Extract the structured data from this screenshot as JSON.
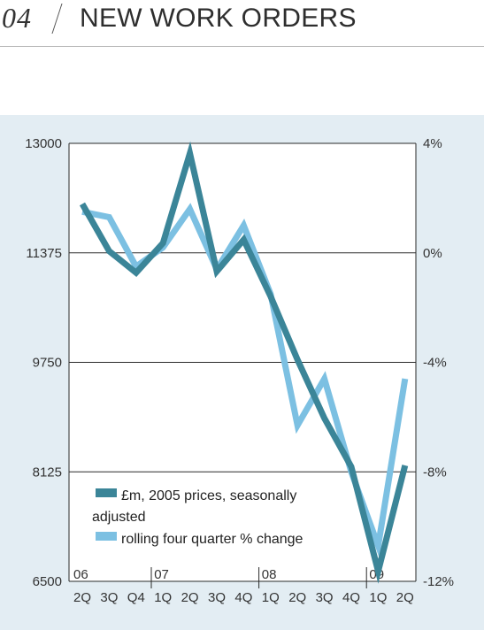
{
  "header": {
    "number": "04",
    "title": "NEW WORK ORDERS"
  },
  "chart_data": {
    "type": "line",
    "colors": {
      "series1": "#3b8598",
      "series2": "#7cc0e2",
      "background": "#e3edf3"
    },
    "left_axis": {
      "ylim": [
        6500,
        13000
      ],
      "ticks": [
        "13000",
        "11375",
        "9750",
        "8125",
        "6500"
      ]
    },
    "right_axis": {
      "ylim": [
        -12,
        4
      ],
      "ticks": [
        "4%",
        "0%",
        "-4%",
        "-8%",
        "-12%"
      ]
    },
    "x_ticks": [
      "2Q",
      "3Q",
      "Q4",
      "1Q",
      "2Q",
      "3Q",
      "4Q",
      "1Q",
      "2Q",
      "3Q",
      "4Q",
      "1Q",
      "2Q"
    ],
    "year_labels": [
      {
        "label": "06",
        "index": 0
      },
      {
        "label": "07",
        "index": 3
      },
      {
        "label": "08",
        "index": 7
      },
      {
        "label": "09",
        "index": 11
      }
    ],
    "series": [
      {
        "name": "£m, 2005 prices, seasonally adjusted",
        "axis": "left",
        "values": [
          12100,
          11400,
          11080,
          11520,
          12850,
          11100,
          11570,
          10730,
          9790,
          8920,
          8200,
          6650,
          8220
        ]
      },
      {
        "name": "rolling four quarter % change",
        "axis": "right",
        "values": [
          1.5,
          1.3,
          -0.5,
          0.2,
          1.6,
          -0.6,
          1.0,
          -1.5,
          -6.3,
          -4.6,
          -8.0,
          -10.7,
          -4.6
        ]
      }
    ],
    "legend": {
      "placement": "bottom-left"
    },
    "grid": true
  }
}
